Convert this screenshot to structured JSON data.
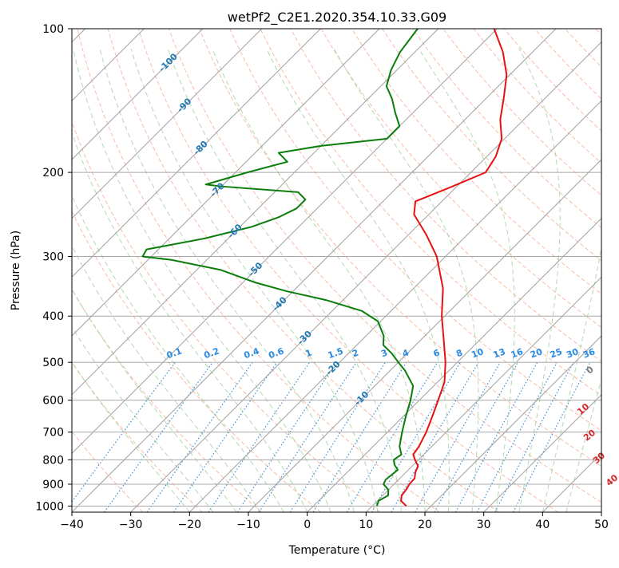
{
  "chart_data": {
    "type": "line",
    "chart_kind": "skew-t log-p diagram",
    "title": "wetPf2_C2E1.2020.354.10.33.G09",
    "xlabel": "Temperature (°C)",
    "ylabel": "Pressure (hPa)",
    "xlim": [
      -40,
      50
    ],
    "ylim": [
      1030,
      100
    ],
    "y_scale": "log",
    "skew": "isotherms slanted at 45 degrees",
    "grid": true,
    "x_ticks": [
      "−40",
      "−30",
      "−20",
      "−10",
      "0",
      "10",
      "20",
      "30",
      "40",
      "50"
    ],
    "x_tick_values": [
      -40,
      -30,
      -20,
      -10,
      0,
      10,
      20,
      30,
      40,
      50
    ],
    "y_ticks": [
      "100",
      "200",
      "300",
      "400",
      "500",
      "600",
      "700",
      "800",
      "900",
      "1000"
    ],
    "y_tick_values": [
      100,
      200,
      300,
      400,
      500,
      600,
      700,
      800,
      900,
      1000
    ],
    "colors": {
      "temperature": "#e81010",
      "dewpoint": "#0a7d0a",
      "isotherm": "#a0a0a0",
      "isobar": "#a8a8a8",
      "dry_adiabat": "#f5a58a",
      "moist_adiabat": "#9ccf9c",
      "mixing_ratio": "#3a8fd8",
      "label_blue": "#1f77b4",
      "label_mixing": "#2a8ae0",
      "label_red": "#d62728",
      "label_gray": "#777777"
    },
    "series": [
      {
        "key": "temperature",
        "points": [
          [
            1000,
            15.8
          ],
          [
            975,
            14.0
          ],
          [
            950,
            13.2
          ],
          [
            925,
            13.0
          ],
          [
            900,
            12.6
          ],
          [
            875,
            12.5
          ],
          [
            850,
            11.6
          ],
          [
            825,
            11.0
          ],
          [
            800,
            9.4
          ],
          [
            780,
            8.2
          ],
          [
            750,
            7.8
          ],
          [
            700,
            6.6
          ],
          [
            650,
            5.0
          ],
          [
            600,
            3.2
          ],
          [
            550,
            1.2
          ],
          [
            500,
            -2.0
          ],
          [
            450,
            -6.0
          ],
          [
            400,
            -10.5
          ],
          [
            350,
            -15.0
          ],
          [
            300,
            -21.5
          ],
          [
            270,
            -27.0
          ],
          [
            245,
            -32.5
          ],
          [
            230,
            -34.5
          ],
          [
            215,
            -31.0
          ],
          [
            200,
            -27.5
          ],
          [
            185,
            -28.5
          ],
          [
            170,
            -30.5
          ],
          [
            155,
            -34.0
          ],
          [
            140,
            -37.0
          ],
          [
            125,
            -40.5
          ],
          [
            112,
            -45.0
          ],
          [
            100,
            -50.5
          ]
        ]
      },
      {
        "key": "dewpoint",
        "points": [
          [
            1000,
            10.8
          ],
          [
            975,
            10.2
          ],
          [
            950,
            10.9
          ],
          [
            925,
            10.0
          ],
          [
            900,
            8.2
          ],
          [
            880,
            7.8
          ],
          [
            860,
            8.0
          ],
          [
            840,
            8.2
          ],
          [
            820,
            6.8
          ],
          [
            800,
            5.8
          ],
          [
            780,
            6.2
          ],
          [
            750,
            4.5
          ],
          [
            700,
            2.5
          ],
          [
            650,
            0.5
          ],
          [
            600,
            -1.5
          ],
          [
            560,
            -3.5
          ],
          [
            520,
            -7.5
          ],
          [
            500,
            -10.0
          ],
          [
            480,
            -12.5
          ],
          [
            460,
            -15.5
          ],
          [
            440,
            -17.0
          ],
          [
            410,
            -20.5
          ],
          [
            390,
            -25.0
          ],
          [
            370,
            -33.0
          ],
          [
            355,
            -41.0
          ],
          [
            340,
            -48.0
          ],
          [
            320,
            -56.0
          ],
          [
            305,
            -66.0
          ],
          [
            300,
            -71.5
          ],
          [
            290,
            -72.0
          ],
          [
            275,
            -64.0
          ],
          [
            260,
            -58.0
          ],
          [
            248,
            -55.0
          ],
          [
            238,
            -53.5
          ],
          [
            228,
            -53.5
          ],
          [
            220,
            -56.0
          ],
          [
            214,
            -70.0
          ],
          [
            212,
            -73.0
          ],
          [
            200,
            -68.0
          ],
          [
            190,
            -63.0
          ],
          [
            182,
            -66.0
          ],
          [
            176,
            -60.0
          ],
          [
            170,
            -50.0
          ],
          [
            160,
            -50.0
          ],
          [
            150,
            -53.0
          ],
          [
            140,
            -56.0
          ],
          [
            132,
            -59.0
          ],
          [
            122,
            -61.0
          ],
          [
            112,
            -62.5
          ],
          [
            100,
            -63.5
          ]
        ]
      }
    ],
    "isotherm_labels": [
      {
        "t": -100,
        "p": 118
      },
      {
        "t": -90,
        "p": 145
      },
      {
        "t": -80,
        "p": 178
      },
      {
        "t": -70,
        "p": 218
      },
      {
        "t": -60,
        "p": 266
      },
      {
        "t": -50,
        "p": 320
      },
      {
        "t": -40,
        "p": 378
      },
      {
        "t": -30,
        "p": 445
      },
      {
        "t": -20,
        "p": 515
      },
      {
        "t": -10,
        "p": 596
      }
    ],
    "isotherm_label_text": [
      "-100",
      "-90",
      "-80",
      "-70",
      "-60",
      "-50",
      "-40",
      "-30",
      "-20",
      "-10"
    ],
    "mixing_ratios": [
      0.1,
      0.2,
      0.4,
      0.6,
      1,
      1.5,
      2,
      3,
      4,
      6,
      8,
      10,
      13,
      16,
      20,
      25,
      30,
      36
    ],
    "mixing_ratio_labels": [
      "0.1",
      "0.2",
      "0.4",
      "0.6",
      "1",
      "1.5",
      "2",
      "3",
      "4",
      "6",
      "8",
      "10",
      "13",
      "16",
      "20",
      "25",
      "30",
      "36"
    ],
    "mixing_ratio_label_pressure": 500,
    "theta_e_labels": [
      {
        "text": "0",
        "t": 24,
        "p": 520,
        "color": "label_gray"
      },
      {
        "text": "10",
        "t": 29.5,
        "p": 628,
        "color": "label_red"
      },
      {
        "text": "20",
        "t": 35,
        "p": 712,
        "color": "label_red"
      },
      {
        "text": "30",
        "t": 40.5,
        "p": 795,
        "color": "label_red"
      },
      {
        "text": "40",
        "t": 46.5,
        "p": 885,
        "color": "label_red"
      }
    ]
  }
}
